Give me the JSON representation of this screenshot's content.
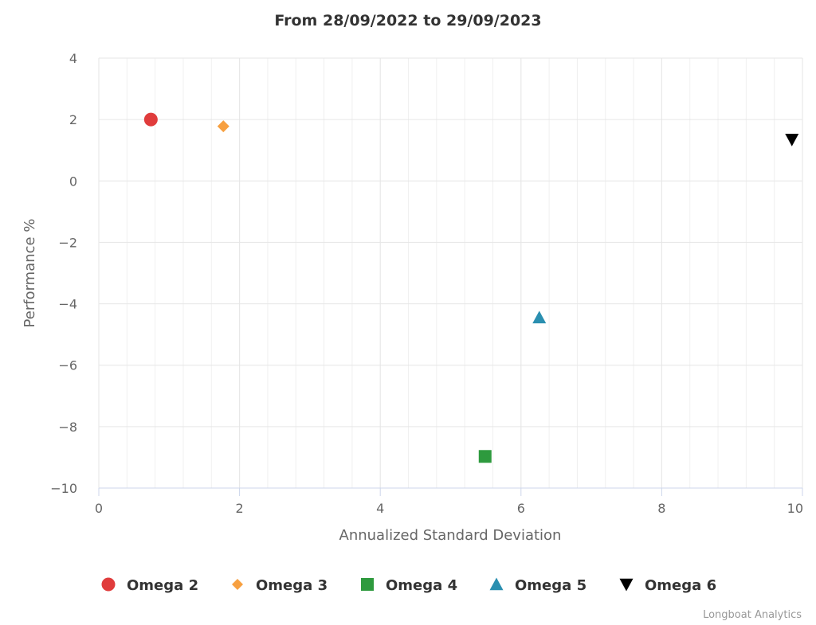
{
  "chart_data": {
    "type": "scatter",
    "title": "From 28/09/2022 to 29/09/2023",
    "xlabel": "Annualized Standard Deviation",
    "ylabel": "Performance %",
    "xlim": [
      0,
      10
    ],
    "ylim": [
      -10,
      4
    ],
    "x_ticks": [
      "0",
      "2",
      "4",
      "6",
      "8",
      "10"
    ],
    "y_ticks": [
      "4",
      "2",
      "0",
      "−2",
      "−4",
      "−6",
      "−8",
      "−10"
    ],
    "grid": true,
    "legend_position": "bottom",
    "series": [
      {
        "name": "Omega 2",
        "marker": "circle",
        "color": "#e03c3c",
        "x": 0.74,
        "y": 2.0
      },
      {
        "name": "Omega 3",
        "marker": "diamond",
        "color": "#f7a040",
        "x": 1.77,
        "y": 1.78
      },
      {
        "name": "Omega 4",
        "marker": "square",
        "color": "#2e9a3e",
        "x": 5.49,
        "y": -8.97
      },
      {
        "name": "Omega 5",
        "marker": "triangle",
        "color": "#2a8fb0",
        "x": 6.26,
        "y": -4.45
      },
      {
        "name": "Omega 6",
        "marker": "triangle-down",
        "color": "#000000",
        "x": 9.85,
        "y": 1.35
      }
    ]
  },
  "credits": "Longboat Analytics"
}
